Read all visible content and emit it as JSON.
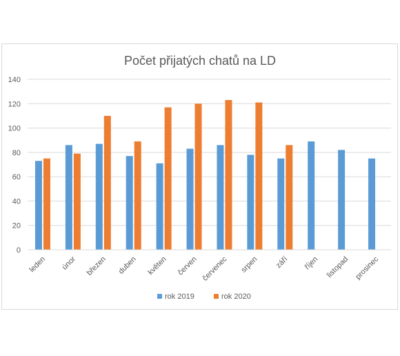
{
  "chart_data": {
    "type": "bar",
    "title": "Počet přijatých chatů na LD",
    "xlabel": "",
    "ylabel": "",
    "ylim": [
      0,
      140
    ],
    "yticks": [
      0,
      20,
      40,
      60,
      80,
      100,
      120,
      140
    ],
    "grid": true,
    "legend_position": "bottom",
    "categories": [
      "leden",
      "únor",
      "březen",
      "duben",
      "květen",
      "červen",
      "červenec",
      "srpen",
      "září",
      "říjen",
      "listopad",
      "prosinec"
    ],
    "series": [
      {
        "name": "rok 2019",
        "color": "#5b9bd5",
        "values": [
          73,
          86,
          87,
          77,
          71,
          83,
          86,
          78,
          75,
          89,
          82,
          75
        ]
      },
      {
        "name": "rok 2020",
        "color": "#ed7d31",
        "values": [
          75,
          79,
          110,
          89,
          117,
          120,
          123,
          121,
          86,
          null,
          null,
          null
        ]
      }
    ]
  }
}
